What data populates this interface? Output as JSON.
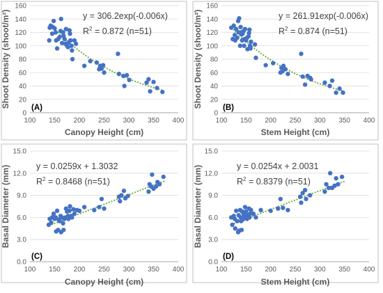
{
  "figure": {
    "marker_color": "#4472C4",
    "trend_color": "#70AD47",
    "axis_color": "#595959",
    "grid_color": "#D9D9D9"
  },
  "chart_data": [
    {
      "type": "scatter",
      "panel_label": "(A)",
      "xlabel": "Canopy Height (cm)",
      "ylabel": "Shoot Density (shoot/m²)",
      "xlim": [
        100,
        400
      ],
      "ylim": [
        0,
        160
      ],
      "xticks": [
        "100",
        "150",
        "200",
        "250",
        "300",
        "350",
        "400"
      ],
      "yticks": [
        "0",
        "20",
        "40",
        "60",
        "80",
        "100",
        "120",
        "140",
        "160"
      ],
      "equation": "y = 306.2exp(-0.006x)",
      "r2_prefix": "R",
      "r2_sup": "2",
      "r2_text": " = 0.872 (n=51)",
      "trend": {
        "kind": "exp",
        "a": 306.2,
        "b": -0.006,
        "x_from": 140,
        "x_to": 370
      },
      "series": [
        {
          "values": [
            [
              139,
              108
            ],
            [
              140,
              127
            ],
            [
              142,
              130
            ],
            [
              145,
              118
            ],
            [
              146,
              128
            ],
            [
              148,
              137
            ],
            [
              150,
              126
            ],
            [
              152,
              120
            ],
            [
              153,
              108
            ],
            [
              155,
              96
            ],
            [
              157,
              110
            ],
            [
              160,
              113
            ],
            [
              162,
              122
            ],
            [
              163,
              140
            ],
            [
              165,
              104
            ],
            [
              167,
              120
            ],
            [
              168,
              115
            ],
            [
              170,
              110
            ],
            [
              172,
              103
            ],
            [
              173,
              125
            ],
            [
              175,
              100
            ],
            [
              177,
              98
            ],
            [
              178,
              105
            ],
            [
              180,
              123
            ],
            [
              181,
              118
            ],
            [
              182,
              108
            ],
            [
              184,
              100
            ],
            [
              185,
              93
            ],
            [
              186,
              80
            ],
            [
              190,
              108
            ],
            [
              193,
              103
            ],
            [
              210,
              70
            ],
            [
              222,
              77
            ],
            [
              235,
              75
            ],
            [
              240,
              65
            ],
            [
              242,
              70
            ],
            [
              245,
              66
            ],
            [
              248,
              71
            ],
            [
              250,
              60
            ],
            [
              278,
              88
            ],
            [
              280,
              58
            ],
            [
              289,
              55
            ],
            [
              291,
              40
            ],
            [
              296,
              56
            ],
            [
              301,
              49
            ],
            [
              336,
              45
            ],
            [
              340,
              50
            ],
            [
              343,
              32
            ],
            [
              350,
              46
            ],
            [
              357,
              37
            ],
            [
              368,
              31
            ]
          ]
        }
      ]
    },
    {
      "type": "scatter",
      "panel_label": "(B)",
      "xlabel": "Stem Height (cm)",
      "ylabel": "Shoot Density (shoot/m²)",
      "xlim": [
        100,
        400
      ],
      "ylim": [
        0,
        160
      ],
      "xticks": [
        "100",
        "150",
        "200",
        "250",
        "300",
        "350",
        "400"
      ],
      "yticks": [
        "0",
        "20",
        "40",
        "60",
        "80",
        "100",
        "120",
        "140",
        "160"
      ],
      "equation": "y = 261.91exp(-0.006x)",
      "r2_prefix": "R",
      "r2_sup": "2",
      "r2_text": " = 0.874 (n=51)",
      "trend": {
        "kind": "exp",
        "a": 261.91,
        "b": -0.006,
        "x_from": 120,
        "x_to": 345
      },
      "series": [
        {
          "values": [
            [
              120,
              127
            ],
            [
              123,
              110
            ],
            [
              125,
              130
            ],
            [
              127,
              116
            ],
            [
              128,
              108
            ],
            [
              130,
              125
            ],
            [
              132,
              112
            ],
            [
              134,
              137
            ],
            [
              135,
              120
            ],
            [
              136,
              141
            ],
            [
              138,
              100
            ],
            [
              139,
              128
            ],
            [
              140,
              120
            ],
            [
              141,
              117
            ],
            [
              142,
              108
            ],
            [
              143,
              118
            ],
            [
              145,
              122
            ],
            [
              146,
              100
            ],
            [
              147,
              110
            ],
            [
              148,
              125
            ],
            [
              150,
              108
            ],
            [
              152,
              112
            ],
            [
              153,
              95
            ],
            [
              155,
              114
            ],
            [
              156,
              119
            ],
            [
              157,
              124
            ],
            [
              158,
              100
            ],
            [
              159,
              96
            ],
            [
              160,
              106
            ],
            [
              168,
              102
            ],
            [
              170,
              82
            ],
            [
              190,
              71
            ],
            [
              205,
              74
            ],
            [
              220,
              60
            ],
            [
              222,
              67
            ],
            [
              224,
              62
            ],
            [
              226,
              70
            ],
            [
              230,
              65
            ],
            [
              235,
              58
            ],
            [
              262,
              88
            ],
            [
              265,
              54
            ],
            [
              270,
              42
            ],
            [
              275,
              55
            ],
            [
              280,
              52
            ],
            [
              282,
              50
            ],
            [
              310,
              45
            ],
            [
              320,
              40
            ],
            [
              325,
              48
            ],
            [
              333,
              30
            ],
            [
              340,
              36
            ],
            [
              347,
              30
            ]
          ]
        }
      ]
    },
    {
      "type": "scatter",
      "panel_label": "(C)",
      "xlabel": "Canopy Height (cm)",
      "ylabel": "Basal Diameter (mm)",
      "xlim": [
        100,
        400
      ],
      "ylim": [
        0,
        15
      ],
      "xticks": [
        "100",
        "150",
        "200",
        "250",
        "300",
        "350",
        "400"
      ],
      "yticks": [
        "0.0",
        "3.0",
        "6.0",
        "9.0",
        "12.0",
        "15.0"
      ],
      "equation": "y = 0.0259x + 1.3032",
      "r2_prefix": "R",
      "r2_sup": "2",
      "r2_text": " = 0.8468 (n=51)",
      "trend": {
        "kind": "linear",
        "a": 1.3032,
        "b": 0.0259,
        "x_from": 138,
        "x_to": 372
      },
      "series": [
        {
          "values": [
            [
              138,
              5.0
            ],
            [
              140,
              5.8
            ],
            [
              143,
              5.3
            ],
            [
              145,
              6.0
            ],
            [
              148,
              6.5
            ],
            [
              150,
              5.8
            ],
            [
              152,
              6.0
            ],
            [
              153,
              4.1
            ],
            [
              155,
              6.9
            ],
            [
              157,
              4.3
            ],
            [
              158,
              5.7
            ],
            [
              160,
              5.5
            ],
            [
              162,
              6.2
            ],
            [
              163,
              4.0
            ],
            [
              165,
              6.0
            ],
            [
              167,
              5.2
            ],
            [
              168,
              4.3
            ],
            [
              170,
              5.8
            ],
            [
              172,
              6.0
            ],
            [
              173,
              7.2
            ],
            [
              175,
              6.8
            ],
            [
              177,
              6.2
            ],
            [
              178,
              5.8
            ],
            [
              180,
              6.9
            ],
            [
              181,
              7.5
            ],
            [
              183,
              6.2
            ],
            [
              185,
              6.0
            ],
            [
              188,
              7.1
            ],
            [
              190,
              6.5
            ],
            [
              195,
              7.0
            ],
            [
              200,
              6.9
            ],
            [
              210,
              7.4
            ],
            [
              230,
              7.0
            ],
            [
              240,
              7.4
            ],
            [
              245,
              8.5
            ],
            [
              250,
              7.2
            ],
            [
              280,
              8.8
            ],
            [
              282,
              8.2
            ],
            [
              285,
              9.0
            ],
            [
              290,
              9.6
            ],
            [
              293,
              8.6
            ],
            [
              298,
              8.9
            ],
            [
              340,
              9.5
            ],
            [
              342,
              10.5
            ],
            [
              345,
              10.2
            ],
            [
              347,
              11.8
            ],
            [
              350,
              9.9
            ],
            [
              355,
              10.2
            ],
            [
              358,
              10.8
            ],
            [
              362,
              10.5
            ],
            [
              370,
              11.5
            ]
          ]
        }
      ]
    },
    {
      "type": "scatter",
      "panel_label": "(D)",
      "xlabel": "Stem Height (cm)",
      "ylabel": "Basal Diameter (mm)",
      "xlim": [
        100,
        400
      ],
      "ylim": [
        0,
        15
      ],
      "xticks": [
        "100",
        "150",
        "200",
        "250",
        "300",
        "350",
        "400"
      ],
      "yticks": [
        "0.0",
        "3.0",
        "6.0",
        "9.0",
        "12.0",
        "15.0"
      ],
      "equation": "y = 0.0254x + 2.0031",
      "r2_prefix": "R",
      "r2_sup": "2",
      "r2_text": " = 0.8379 (n=51)",
      "trend": {
        "kind": "linear",
        "a": 2.0031,
        "b": 0.0254,
        "x_from": 120,
        "x_to": 350
      },
      "series": [
        {
          "values": [
            [
              120,
              6.0
            ],
            [
              122,
              5.0
            ],
            [
              125,
              6.2
            ],
            [
              127,
              5.8
            ],
            [
              128,
              4.5
            ],
            [
              130,
              6.9
            ],
            [
              132,
              5.5
            ],
            [
              134,
              4.0
            ],
            [
              135,
              6.3
            ],
            [
              136,
              4.2
            ],
            [
              138,
              7.0
            ],
            [
              139,
              6.0
            ],
            [
              140,
              5.5
            ],
            [
              141,
              4.3
            ],
            [
              142,
              6.8
            ],
            [
              143,
              5.7
            ],
            [
              145,
              6.5
            ],
            [
              146,
              6.2
            ],
            [
              147,
              5.9
            ],
            [
              148,
              7.4
            ],
            [
              150,
              6.8
            ],
            [
              152,
              5.8
            ],
            [
              153,
              6.3
            ],
            [
              155,
              6.0
            ],
            [
              156,
              7.2
            ],
            [
              157,
              6.0
            ],
            [
              158,
              6.5
            ],
            [
              160,
              7.0
            ],
            [
              165,
              6.5
            ],
            [
              170,
              6.0
            ],
            [
              180,
              7.0
            ],
            [
              200,
              6.9
            ],
            [
              215,
              7.2
            ],
            [
              220,
              8.5
            ],
            [
              225,
              7.3
            ],
            [
              235,
              7.0
            ],
            [
              260,
              8.8
            ],
            [
              262,
              8.0
            ],
            [
              265,
              9.3
            ],
            [
              270,
              9.7
            ],
            [
              272,
              8.5
            ],
            [
              280,
              9.0
            ],
            [
              310,
              9.5
            ],
            [
              313,
              10.5
            ],
            [
              318,
              10.0
            ],
            [
              321,
              12.0
            ],
            [
              325,
              10.0
            ],
            [
              330,
              10.3
            ],
            [
              333,
              11.3
            ],
            [
              337,
              10.5
            ],
            [
              345,
              11.5
            ]
          ]
        }
      ]
    }
  ]
}
